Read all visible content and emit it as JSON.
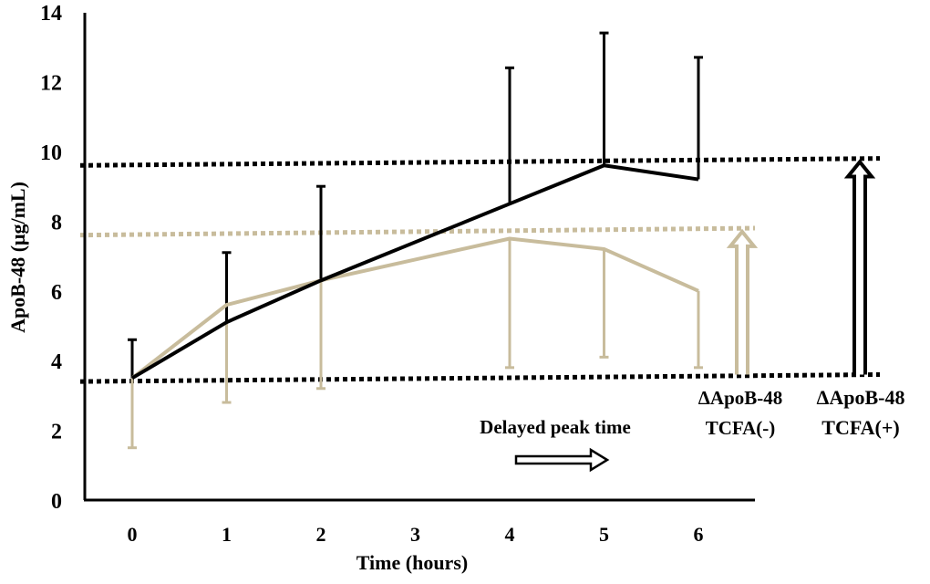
{
  "chart_data": {
    "type": "line",
    "title": "",
    "xlabel": "Time (hours)",
    "ylabel": "ApoB-48 (μg/mL)",
    "xlim": [
      -0.5,
      6.8
    ],
    "ylim": [
      0,
      14
    ],
    "x": [
      0,
      1,
      2,
      3,
      4,
      5,
      6
    ],
    "x_tick_labels": [
      "0",
      "1",
      "2",
      "3",
      "4",
      "5",
      "6"
    ],
    "y_ticks": [
      0,
      2,
      4,
      6,
      8,
      10,
      12,
      14
    ],
    "y_tick_labels": [
      "0",
      "2",
      "4",
      "6",
      "8",
      "10",
      "12",
      "14"
    ],
    "grid": false,
    "series": [
      {
        "values": [
          3.5,
          5.6,
          6.3,
          6.9,
          7.5,
          7.2,
          6.0
        ],
        "error_lower": [
          1.5,
          2.8,
          3.2,
          0,
          3.8,
          4.1,
          3.8
        ],
        "error_upper": [
          0,
          0,
          0,
          0,
          0,
          0,
          0
        ],
        "color": "#c8bc9c"
      },
      {
        "values": [
          3.5,
          5.1,
          6.3,
          7.4,
          8.5,
          9.6,
          9.2
        ],
        "error_lower": [
          0,
          0,
          0,
          0,
          0,
          0,
          0
        ],
        "error_upper": [
          4.6,
          7.1,
          9.0,
          0,
          12.4,
          13.4,
          12.7
        ],
        "color": "#000000"
      }
    ],
    "reference_lines": [
      {
        "y_start": 9.6,
        "y_end": 9.8,
        "color": "#000000"
      },
      {
        "y_start": 7.6,
        "y_end": 7.8,
        "color": "#c8bc9c"
      },
      {
        "y_start": 3.4,
        "y_end": 3.6,
        "color": "#000000"
      }
    ],
    "annotations": {
      "delayed_peak": "Delayed peak time",
      "tcfa_neg_line1": "ΔApoB-48",
      "tcfa_neg_line2": "TCFA(-)",
      "tcfa_pos_line1": "ΔApoB-48",
      "tcfa_pos_line2": "TCFA(+)"
    }
  }
}
